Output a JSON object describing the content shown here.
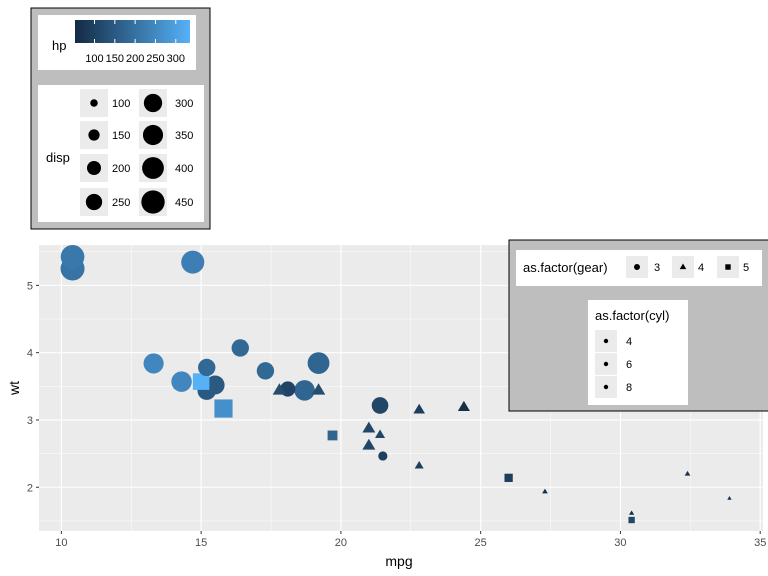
{
  "chart_data": {
    "type": "scatter",
    "xlabel": "mpg",
    "ylabel": "wt",
    "xlim": [
      9.2,
      35.1
    ],
    "ylim": [
      1.35,
      5.6
    ],
    "x_ticks": [
      10,
      15,
      20,
      25,
      30,
      35
    ],
    "y_ticks": [
      2,
      3,
      4,
      5
    ],
    "grid": true,
    "legend_placement": "top-left and right",
    "encodings": {
      "color": "hp",
      "size": "disp",
      "shape": "as.factor(gear)",
      "cyl_legend": "as.factor(cyl)"
    },
    "points": [
      {
        "mpg": 21.0,
        "wt": 2.62,
        "hp": 110,
        "disp": 160,
        "gear": 4,
        "cyl": 6
      },
      {
        "mpg": 21.0,
        "wt": 2.875,
        "hp": 110,
        "disp": 160,
        "gear": 4,
        "cyl": 6
      },
      {
        "mpg": 22.8,
        "wt": 2.32,
        "hp": 93,
        "disp": 108,
        "gear": 4,
        "cyl": 4
      },
      {
        "mpg": 21.4,
        "wt": 3.215,
        "hp": 110,
        "disp": 258,
        "gear": 3,
        "cyl": 6
      },
      {
        "mpg": 18.7,
        "wt": 3.44,
        "hp": 175,
        "disp": 360,
        "gear": 3,
        "cyl": 8
      },
      {
        "mpg": 18.1,
        "wt": 3.46,
        "hp": 105,
        "disp": 225,
        "gear": 3,
        "cyl": 6
      },
      {
        "mpg": 14.3,
        "wt": 3.57,
        "hp": 245,
        "disp": 360,
        "gear": 3,
        "cyl": 8
      },
      {
        "mpg": 24.4,
        "wt": 3.19,
        "hp": 62,
        "disp": 146.7,
        "gear": 4,
        "cyl": 4
      },
      {
        "mpg": 22.8,
        "wt": 3.15,
        "hp": 95,
        "disp": 140.8,
        "gear": 4,
        "cyl": 4
      },
      {
        "mpg": 19.2,
        "wt": 3.44,
        "hp": 123,
        "disp": 167.6,
        "gear": 4,
        "cyl": 6
      },
      {
        "mpg": 17.8,
        "wt": 3.44,
        "hp": 123,
        "disp": 167.6,
        "gear": 4,
        "cyl": 6
      },
      {
        "mpg": 16.4,
        "wt": 4.07,
        "hp": 180,
        "disp": 275.8,
        "gear": 3,
        "cyl": 8
      },
      {
        "mpg": 17.3,
        "wt": 3.73,
        "hp": 180,
        "disp": 275.8,
        "gear": 3,
        "cyl": 8
      },
      {
        "mpg": 15.2,
        "wt": 3.78,
        "hp": 180,
        "disp": 275.8,
        "gear": 3,
        "cyl": 8
      },
      {
        "mpg": 10.4,
        "wt": 5.25,
        "hp": 205,
        "disp": 472,
        "gear": 3,
        "cyl": 8
      },
      {
        "mpg": 10.4,
        "wt": 5.424,
        "hp": 215,
        "disp": 460,
        "gear": 3,
        "cyl": 8
      },
      {
        "mpg": 14.7,
        "wt": 5.345,
        "hp": 230,
        "disp": 440,
        "gear": 3,
        "cyl": 8
      },
      {
        "mpg": 32.4,
        "wt": 2.2,
        "hp": 66,
        "disp": 78.7,
        "gear": 4,
        "cyl": 4
      },
      {
        "mpg": 30.4,
        "wt": 1.615,
        "hp": 52,
        "disp": 75.7,
        "gear": 4,
        "cyl": 4
      },
      {
        "mpg": 33.9,
        "wt": 1.835,
        "hp": 65,
        "disp": 71.1,
        "gear": 4,
        "cyl": 4
      },
      {
        "mpg": 21.5,
        "wt": 2.465,
        "hp": 97,
        "disp": 120.1,
        "gear": 3,
        "cyl": 4
      },
      {
        "mpg": 15.5,
        "wt": 3.52,
        "hp": 150,
        "disp": 318,
        "gear": 3,
        "cyl": 8
      },
      {
        "mpg": 15.2,
        "wt": 3.435,
        "hp": 150,
        "disp": 304,
        "gear": 3,
        "cyl": 8
      },
      {
        "mpg": 13.3,
        "wt": 3.84,
        "hp": 245,
        "disp": 350,
        "gear": 3,
        "cyl": 8
      },
      {
        "mpg": 19.2,
        "wt": 3.845,
        "hp": 175,
        "disp": 400,
        "gear": 3,
        "cyl": 8
      },
      {
        "mpg": 27.3,
        "wt": 1.935,
        "hp": 66,
        "disp": 79,
        "gear": 4,
        "cyl": 4
      },
      {
        "mpg": 26.0,
        "wt": 2.14,
        "hp": 91,
        "disp": 120.3,
        "gear": 5,
        "cyl": 4
      },
      {
        "mpg": 30.4,
        "wt": 1.513,
        "hp": 113,
        "disp": 95.1,
        "gear": 5,
        "cyl": 4
      },
      {
        "mpg": 15.8,
        "wt": 3.17,
        "hp": 264,
        "disp": 351,
        "gear": 5,
        "cyl": 8
      },
      {
        "mpg": 19.7,
        "wt": 2.77,
        "hp": 175,
        "disp": 145,
        "gear": 5,
        "cyl": 6
      },
      {
        "mpg": 15.0,
        "wt": 3.57,
        "hp": 335,
        "disp": 301,
        "gear": 5,
        "cyl": 8
      },
      {
        "mpg": 21.4,
        "wt": 2.78,
        "hp": 109,
        "disp": 121,
        "gear": 4,
        "cyl": 4
      }
    ],
    "legends": {
      "hp": {
        "title": "hp",
        "tick_labels": [
          "100",
          "150",
          "200",
          "250",
          "300"
        ],
        "tick_values": [
          100,
          150,
          200,
          250,
          300
        ],
        "range": [
          52,
          335
        ],
        "color_low": "#132B43",
        "color_high": "#56B1F7"
      },
      "disp": {
        "title": "disp",
        "labels": [
          "100",
          "150",
          "200",
          "250",
          "300",
          "350",
          "400",
          "450"
        ],
        "values": [
          100,
          150,
          200,
          250,
          300,
          350,
          400,
          450
        ],
        "range": [
          71.1,
          472
        ]
      },
      "gear": {
        "title": "as.factor(gear)",
        "labels": [
          "3",
          "4",
          "5"
        ],
        "shapes": [
          "circle",
          "triangle",
          "square"
        ]
      },
      "cyl": {
        "title": "as.factor(cyl)",
        "labels": [
          "4",
          "6",
          "8"
        ]
      }
    },
    "colors": {
      "panel_bg": "#EBEBEB",
      "grid_major": "#FFFFFF",
      "legend_bg": "#BEBEBE",
      "key_bg": "#EBEBEB"
    }
  }
}
